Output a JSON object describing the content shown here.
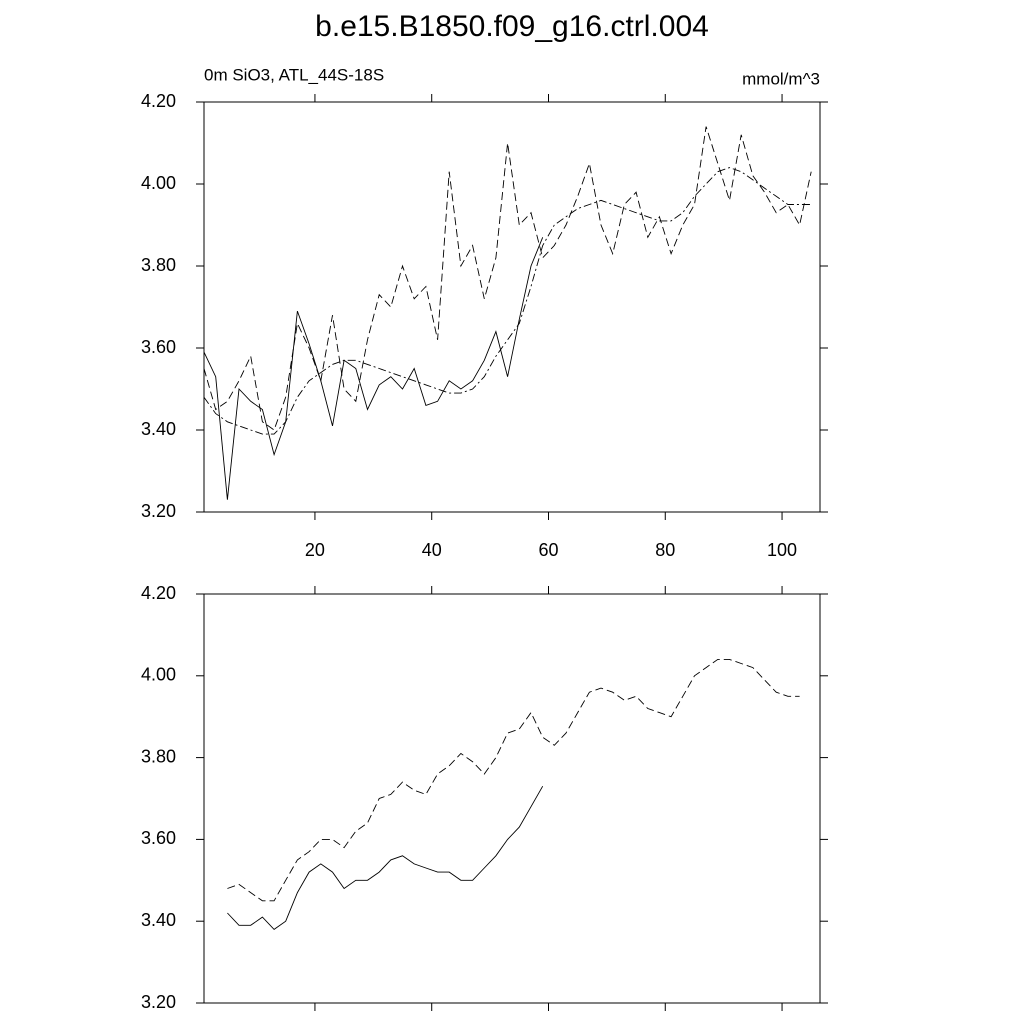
{
  "title": "b.e15.B1850.f09_g16.ctrl.004",
  "chart_data": [
    {
      "type": "line",
      "subtitle_left": "0m SiO3, ATL_44S-18S",
      "subtitle_right": "mmol/m^3",
      "x": [
        1,
        3,
        5,
        7,
        9,
        11,
        13,
        15,
        17,
        19,
        21,
        23,
        25,
        27,
        29,
        31,
        33,
        35,
        37,
        39,
        41,
        43,
        45,
        47,
        49,
        51,
        53,
        55,
        57,
        59,
        61,
        63,
        65,
        67,
        69,
        71,
        73,
        75,
        77,
        79,
        81,
        83,
        85,
        87,
        89,
        91,
        93,
        95,
        97,
        99,
        101,
        103,
        105
      ],
      "xlim": [
        1,
        106.5
      ],
      "xticks": [
        20,
        40,
        60,
        80,
        100
      ],
      "ylim": [
        3.2,
        4.2
      ],
      "yticks": [
        {
          "value": 3.2,
          "label": "3.20"
        },
        {
          "value": 3.4,
          "label": "3.40"
        },
        {
          "value": 3.6,
          "label": "3.60"
        },
        {
          "value": 3.8,
          "label": "3.80"
        },
        {
          "value": 4.0,
          "label": "4.00"
        },
        {
          "value": 4.2,
          "label": "4.20"
        }
      ],
      "series": [
        {
          "color": "#000000",
          "dash": "solid",
          "values": [
            3.59,
            3.53,
            3.23,
            3.5,
            3.47,
            3.45,
            3.34,
            3.42,
            3.69,
            3.61,
            3.52,
            3.41,
            3.57,
            3.55,
            3.45,
            3.51,
            3.53,
            3.5,
            3.55,
            3.46,
            3.47,
            3.52,
            3.5,
            3.52,
            3.57,
            3.64,
            3.53,
            3.67,
            3.8,
            3.87,
            null,
            null,
            null,
            null,
            null,
            null,
            null,
            null,
            null,
            null,
            null,
            null,
            null,
            null,
            null,
            null,
            null,
            null,
            null,
            null,
            null,
            null,
            null
          ]
        },
        {
          "color": "#000000",
          "dash": "dashed",
          "values": [
            3.55,
            3.45,
            3.47,
            3.52,
            3.58,
            3.42,
            3.4,
            3.48,
            3.66,
            3.6,
            3.52,
            3.68,
            3.5,
            3.47,
            3.62,
            3.73,
            3.7,
            3.8,
            3.72,
            3.75,
            3.62,
            4.03,
            3.8,
            3.85,
            3.72,
            3.82,
            4.1,
            3.9,
            3.93,
            3.82,
            3.85,
            3.9,
            3.97,
            4.05,
            3.9,
            3.83,
            3.95,
            3.98,
            3.87,
            3.92,
            3.83,
            3.9,
            3.95,
            4.14,
            4.05,
            3.96,
            4.12,
            4.02,
            3.98,
            3.93,
            3.95,
            3.9,
            4.03
          ]
        },
        {
          "color": "#000000",
          "dash": "dashdot",
          "values": [
            3.48,
            3.44,
            3.42,
            3.41,
            3.4,
            3.39,
            3.39,
            3.42,
            3.48,
            3.52,
            3.54,
            3.56,
            3.57,
            3.57,
            3.56,
            3.55,
            3.54,
            3.53,
            3.52,
            3.51,
            3.5,
            3.49,
            3.49,
            3.5,
            3.53,
            3.58,
            3.62,
            3.66,
            3.75,
            3.85,
            3.9,
            3.92,
            3.94,
            3.95,
            3.96,
            3.95,
            3.94,
            3.93,
            3.92,
            3.91,
            3.91,
            3.93,
            3.97,
            4.0,
            4.03,
            4.04,
            4.03,
            4.01,
            3.99,
            3.97,
            3.95,
            3.95,
            3.95
          ]
        }
      ]
    },
    {
      "type": "line",
      "x": [
        1,
        3,
        5,
        7,
        9,
        11,
        13,
        15,
        17,
        19,
        21,
        23,
        25,
        27,
        29,
        31,
        33,
        35,
        37,
        39,
        41,
        43,
        45,
        47,
        49,
        51,
        53,
        55,
        57,
        59,
        61,
        63,
        65,
        67,
        69,
        71,
        73,
        75,
        77,
        79,
        81,
        83,
        85,
        87,
        89,
        91,
        93,
        95,
        97,
        99,
        101,
        103,
        105
      ],
      "xlim": [
        1,
        106.5
      ],
      "xticks": [
        20,
        40,
        60,
        80,
        100
      ],
      "ylim": [
        3.2,
        4.2
      ],
      "yticks": [
        {
          "value": 3.2,
          "label": "3.20"
        },
        {
          "value": 3.4,
          "label": "3.40"
        },
        {
          "value": 3.6,
          "label": "3.60"
        },
        {
          "value": 3.8,
          "label": "3.80"
        },
        {
          "value": 4.0,
          "label": "4.00"
        },
        {
          "value": 4.2,
          "label": "4.20"
        }
      ],
      "series": [
        {
          "color": "#000000",
          "dash": "solid",
          "values": [
            null,
            null,
            3.42,
            3.39,
            3.39,
            3.41,
            3.38,
            3.4,
            3.47,
            3.52,
            3.54,
            3.52,
            3.48,
            3.5,
            3.5,
            3.52,
            3.55,
            3.56,
            3.54,
            3.53,
            3.52,
            3.52,
            3.5,
            3.5,
            3.53,
            3.56,
            3.6,
            3.63,
            3.68,
            3.73,
            null,
            null,
            null,
            null,
            null,
            null,
            null,
            null,
            null,
            null,
            null,
            null,
            null,
            null,
            null,
            null,
            null,
            null,
            null,
            null,
            null,
            null,
            null
          ]
        },
        {
          "color": "#000000",
          "dash": "dashed",
          "values": [
            null,
            null,
            3.48,
            3.49,
            3.47,
            3.45,
            3.45,
            3.5,
            3.55,
            3.57,
            3.6,
            3.6,
            3.58,
            3.62,
            3.64,
            3.7,
            3.71,
            3.74,
            3.72,
            3.71,
            3.76,
            3.78,
            3.81,
            3.79,
            3.76,
            3.8,
            3.86,
            3.87,
            3.91,
            3.85,
            3.83,
            3.86,
            3.91,
            3.96,
            3.97,
            3.96,
            3.94,
            3.95,
            3.92,
            3.91,
            3.9,
            3.95,
            4.0,
            4.02,
            4.04,
            4.04,
            4.03,
            4.02,
            3.99,
            3.96,
            3.95,
            3.95,
            null
          ]
        }
      ]
    }
  ]
}
